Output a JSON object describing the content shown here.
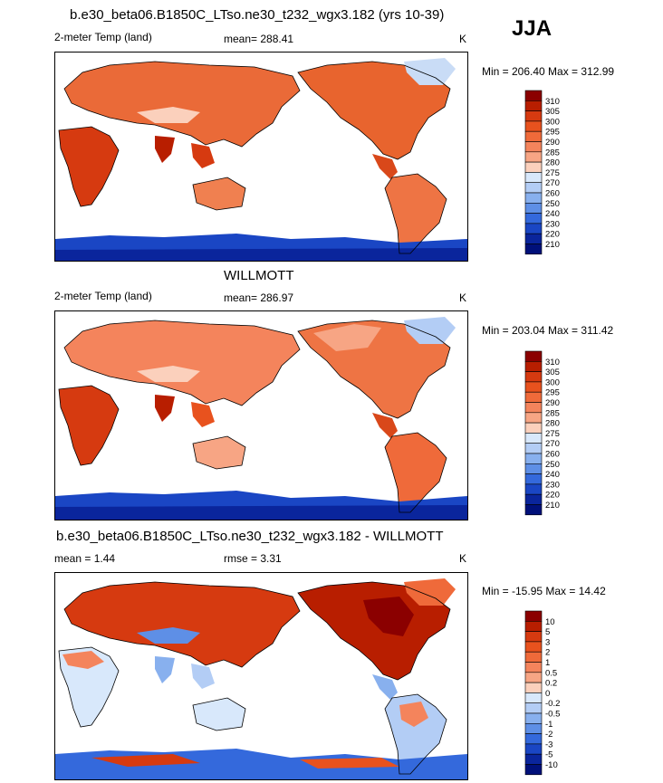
{
  "season": "JJA",
  "panels": [
    {
      "id": "model",
      "title": "b.e30_beta06.B1850C_LTso.ne30_t232_wgx3.182 (yrs 10-39)",
      "left_label": "2-meter Temp (land)",
      "center_label": "mean= 288.41",
      "units": "K",
      "minmax": "Min = 206.40 Max = 312.99"
    },
    {
      "id": "obs",
      "title": "WILLMOTT",
      "left_label": "2-meter Temp (land)",
      "center_label": "mean= 286.97",
      "units": "K",
      "minmax": "Min = 203.04 Max = 311.42"
    },
    {
      "id": "diff",
      "title": "b.e30_beta06.B1850C_LTso.ne30_t232_wgx3.182 - WILLMOTT",
      "left_label": "mean =   1.44",
      "center_label": "rmse =   3.31",
      "units": "K",
      "minmax": "Min = -15.95 Max =  14.42"
    }
  ],
  "chart_data": [
    {
      "type": "heatmap",
      "title": "b.e30_beta06.B1850C_LTso.ne30_t232_wgx3.182 (yrs 10-39)",
      "variable": "2-meter Temp (land)",
      "units": "K",
      "mean": 288.41,
      "min": 206.4,
      "max": 312.99,
      "colorbar_levels": [
        "310",
        "305",
        "300",
        "295",
        "290",
        "285",
        "280",
        "275",
        "270",
        "260",
        "250",
        "240",
        "230",
        "220",
        "210"
      ],
      "colorbar_colors": [
        "#8b0000",
        "#b81e00",
        "#d63a10",
        "#e8521e",
        "#ef6a3a",
        "#f4845c",
        "#f7a584",
        "#fbd0bc",
        "#d8e8fb",
        "#b3cdf5",
        "#88b0ee",
        "#5e8fe6",
        "#3469dc",
        "#1a46c4",
        "#0a259c",
        "#00107a"
      ],
      "projection": "cylindrical equidistant, Pacific-centered"
    },
    {
      "type": "heatmap",
      "title": "WILLMOTT",
      "variable": "2-meter Temp (land)",
      "units": "K",
      "mean": 286.97,
      "min": 203.04,
      "max": 311.42,
      "colorbar_levels": [
        "310",
        "305",
        "300",
        "295",
        "290",
        "285",
        "280",
        "275",
        "270",
        "260",
        "250",
        "240",
        "230",
        "220",
        "210"
      ],
      "colorbar_colors": [
        "#8b0000",
        "#b81e00",
        "#d63a10",
        "#e8521e",
        "#ef6a3a",
        "#f4845c",
        "#f7a584",
        "#fbd0bc",
        "#d8e8fb",
        "#b3cdf5",
        "#88b0ee",
        "#5e8fe6",
        "#3469dc",
        "#1a46c4",
        "#0a259c",
        "#00107a"
      ],
      "projection": "cylindrical equidistant, Pacific-centered"
    },
    {
      "type": "heatmap",
      "title": "b.e30_beta06.B1850C_LTso.ne30_t232_wgx3.182 - WILLMOTT",
      "variable": "2-meter Temp (land) difference",
      "units": "K",
      "mean": 1.44,
      "rmse": 3.31,
      "min": -15.95,
      "max": 14.42,
      "colorbar_levels": [
        "10",
        "5",
        "3",
        "2",
        "1",
        "0.5",
        "0.2",
        "0",
        "-0.2",
        "-0.5",
        "-1",
        "-2",
        "-3",
        "-5",
        "-10"
      ],
      "colorbar_colors": [
        "#8b0000",
        "#b81e00",
        "#d63a10",
        "#e8521e",
        "#ef6a3a",
        "#f4845c",
        "#f7a584",
        "#fbd0bc",
        "#d8e8fb",
        "#b3cdf5",
        "#88b0ee",
        "#5e8fe6",
        "#3469dc",
        "#1a46c4",
        "#0a259c",
        "#00107a"
      ],
      "projection": "cylindrical equidistant, Pacific-centered"
    }
  ]
}
